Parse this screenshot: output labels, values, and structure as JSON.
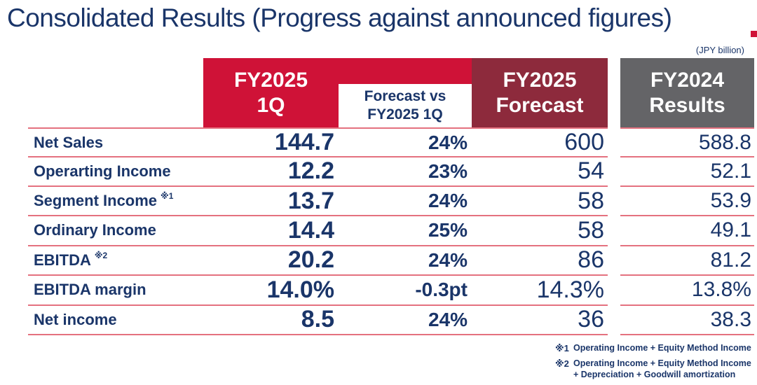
{
  "title": "Consolidated Results (Progress against announced figures)",
  "unit_note": "(JPY billion)",
  "colors": {
    "crimson": "#cf1237",
    "maroon": "#8d2a3c",
    "gray": "#646467",
    "navy": "#1a3569",
    "separator_line": "#e4717f"
  },
  "table": {
    "headers": {
      "q1": {
        "line1": "FY2025",
        "line2": "1Q"
      },
      "vs": {
        "line1": "Forecast vs",
        "line2": "FY2025 1Q"
      },
      "forecast": {
        "line1": "FY2025",
        "line2": "Forecast"
      },
      "fy2024": {
        "line1": "FY2024",
        "line2": "Results"
      }
    },
    "rows": [
      {
        "label": "Net Sales",
        "sup": "",
        "q1": "144.7",
        "vs": "24%",
        "forecast": "600",
        "fy2024": "588.8"
      },
      {
        "label": "Operarting Income",
        "sup": "",
        "q1": "12.2",
        "vs": "23%",
        "forecast": "54",
        "fy2024": "52.1"
      },
      {
        "label": "Segment Income",
        "sup": "※1",
        "q1": "13.7",
        "vs": "24%",
        "forecast": "58",
        "fy2024": "53.9"
      },
      {
        "label": "Ordinary Income",
        "sup": "",
        "q1": "14.4",
        "vs": "25%",
        "forecast": "58",
        "fy2024": "49.1"
      },
      {
        "label": "EBITDA",
        "sup": "※2",
        "q1": "20.2",
        "vs": "24%",
        "forecast": "86",
        "fy2024": "81.2"
      },
      {
        "label": "EBITDA margin",
        "sup": "",
        "q1": "14.0%",
        "vs": "-0.3pt",
        "forecast": "14.3%",
        "fy2024": "13.8%"
      },
      {
        "label": "Net income",
        "sup": "",
        "q1": "8.5",
        "vs": "24%",
        "forecast": "36",
        "fy2024": "38.3"
      }
    ]
  },
  "footnotes": [
    {
      "mark": "※1",
      "text": "Operating Income + Equity Method Income"
    },
    {
      "mark": "※2",
      "text": "Operating Income + Equity Method Income\n+ Depreciation + Goodwill amortization"
    }
  ]
}
